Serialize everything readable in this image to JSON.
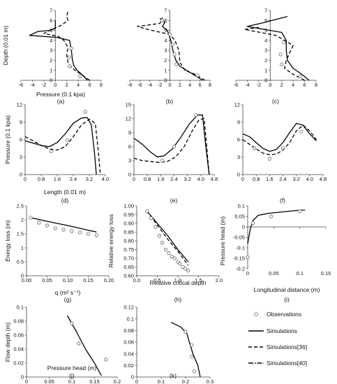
{
  "legend": [
    {
      "name": "Observations",
      "style": "circle"
    },
    {
      "name": "Simulations",
      "style": "solid"
    },
    {
      "name": "Simulations[36]",
      "style": "dashed"
    },
    {
      "name": "Simulations[40]",
      "style": "dashdot"
    }
  ],
  "chart_data": [
    {
      "id": "a",
      "type": "line",
      "panel_label": "(a)",
      "xlabel": "Pressure (0.1 kpa)",
      "ylabel": "Depth  (0.01 m)",
      "xlim": [
        -6,
        8
      ],
      "ylim": [
        0,
        7
      ],
      "xticks": [
        -6,
        -4,
        -2,
        0,
        2,
        4,
        6,
        8
      ],
      "yticks": [
        0,
        1,
        2,
        3,
        4,
        5,
        6,
        7
      ],
      "tick_labels_x": [
        "-6",
        "-4",
        "-2",
        "0",
        "2",
        "4",
        "6",
        "8"
      ],
      "tick_labels_y": [
        "0",
        "1",
        "2",
        "3",
        "4",
        "5",
        "6",
        "7"
      ],
      "series": [
        {
          "style": "solid",
          "x": [
            5.6,
            4.8,
            3.8,
            3.2,
            3.0,
            2.8,
            2.5,
            0.3,
            -4.5,
            -3.0,
            -1.0,
            0.0,
            0.0
          ],
          "y": [
            0.0,
            0.5,
            1.0,
            1.5,
            2.0,
            3.0,
            4.0,
            4.3,
            4.5,
            4.9,
            5.0,
            5.2,
            6.0
          ]
        },
        {
          "style": "dashed",
          "x": [
            6.0,
            5.0,
            4.0,
            3.0,
            2.2,
            2.0,
            2.2,
            1.5,
            0.5,
            -2.0,
            -1.0,
            1.0,
            2.2,
            2.0,
            2.2
          ],
          "y": [
            0.0,
            0.4,
            0.8,
            1.2,
            1.8,
            2.5,
            3.3,
            4.0,
            4.4,
            4.7,
            5.0,
            5.5,
            6.0,
            6.4,
            7.0
          ]
        },
        {
          "style": "circle",
          "x": [
            4.3,
            2.5,
            2.4,
            2.8
          ],
          "y": [
            0.4,
            1.4,
            2.3,
            3.2
          ]
        }
      ]
    },
    {
      "id": "b",
      "type": "line",
      "panel_label": "(b)",
      "xlabel": "",
      "ylabel": "",
      "xlim": [
        -8,
        8
      ],
      "ylim": [
        0,
        7
      ],
      "xticks": [
        -8,
        -6,
        -4,
        -2,
        0,
        2,
        4,
        6,
        8
      ],
      "yticks": [
        0,
        1,
        2,
        3,
        4,
        5,
        6,
        7
      ],
      "tick_labels_x": [
        "-8",
        "-6",
        "-4",
        "-2",
        "0",
        "2",
        "4",
        "6",
        "8"
      ],
      "tick_labels_y": [
        "0",
        "1",
        "2",
        "3",
        "4",
        "5",
        "6",
        "7"
      ],
      "series": [
        {
          "style": "solid",
          "x": [
            6.5,
            4.0,
            2.0,
            1.2,
            0.6,
            0.2,
            -0.5,
            -1.5,
            -1.0,
            -2.0
          ],
          "y": [
            0.0,
            0.8,
            1.4,
            2.0,
            3.0,
            4.0,
            5.0,
            5.4,
            5.8,
            6.2
          ]
        },
        {
          "style": "dashed",
          "x": [
            7.0,
            5.0,
            3.0,
            2.0,
            1.8,
            1.0,
            0.0,
            -4.5,
            -6.5,
            -2.0,
            -1.5
          ],
          "y": [
            0.0,
            0.6,
            1.0,
            1.8,
            3.0,
            4.0,
            4.6,
            5.1,
            5.4,
            5.7,
            6.3
          ]
        },
        {
          "style": "circle",
          "x": [
            5.5,
            1.3,
            0.9,
            0.6,
            0.0,
            -1.5
          ],
          "y": [
            0.5,
            1.6,
            2.6,
            3.6,
            4.6,
            6.0
          ]
        }
      ]
    },
    {
      "id": "c",
      "type": "line",
      "panel_label": "(c)",
      "xlabel": "",
      "ylabel": "",
      "xlim": [
        -6,
        8
      ],
      "ylim": [
        0,
        7
      ],
      "xticks": [
        -6,
        -4,
        -2,
        0,
        2,
        4,
        6,
        8
      ],
      "yticks": [
        0,
        1,
        2,
        3,
        4,
        5,
        6,
        7
      ],
      "tick_labels_x": [
        "-6",
        "-4",
        "-2",
        "0",
        "2",
        "4",
        "6",
        "8"
      ],
      "tick_labels_y": [
        "0",
        "1",
        "2",
        "3",
        "4",
        "5",
        "6",
        "7"
      ],
      "series": [
        {
          "style": "solid",
          "x": [
            6.8,
            5.5,
            4.0,
            3.0,
            2.8,
            2.8,
            2.0,
            -4.0,
            -1.0,
            3.0
          ],
          "y": [
            0.0,
            0.6,
            1.2,
            2.0,
            3.0,
            4.0,
            4.8,
            5.4,
            5.8,
            6.4
          ]
        },
        {
          "style": "dashed",
          "x": [
            6.0,
            4.0,
            2.5,
            2.8,
            4.0,
            1.0,
            -4.5,
            -2.0
          ],
          "y": [
            0.0,
            0.6,
            1.2,
            2.0,
            3.5,
            4.5,
            5.1,
            5.3
          ]
        },
        {
          "style": "circle",
          "x": [
            5.2,
            2.0,
            1.8,
            2.4
          ],
          "y": [
            0.4,
            1.6,
            2.6,
            3.8
          ]
        }
      ]
    },
    {
      "id": "d",
      "type": "line",
      "panel_label": "(d)",
      "xlabel": "Length (0.01 m)",
      "ylabel": "Pressure  (0.1 kpa)",
      "xlim": [
        0,
        4
      ],
      "ylim": [
        0,
        12
      ],
      "xticks": [
        0,
        0.8,
        1.6,
        2.4,
        3.2,
        4.0
      ],
      "yticks": [
        0,
        3,
        6,
        9,
        12
      ],
      "tick_labels_x": [
        "0",
        "0.8",
        "1.6",
        "2.4",
        "3.2",
        "4.0"
      ],
      "tick_labels_y": [
        "0",
        "3",
        "6",
        "9",
        "12"
      ],
      "series": [
        {
          "style": "solid",
          "x": [
            0.0,
            0.4,
            0.8,
            1.2,
            1.6,
            2.0,
            2.4,
            2.8,
            3.1,
            3.3,
            3.45,
            3.55
          ],
          "y": [
            5.8,
            5.4,
            5.0,
            4.8,
            5.5,
            7.0,
            8.8,
            9.7,
            9.8,
            8.5,
            4.0,
            0.0
          ]
        },
        {
          "style": "dashed",
          "x": [
            0.0,
            0.4,
            0.8,
            1.2,
            1.6,
            2.0,
            2.4,
            2.8,
            3.2,
            3.5,
            3.65,
            3.75
          ],
          "y": [
            6.5,
            5.8,
            5.0,
            4.4,
            4.2,
            4.8,
            6.5,
            8.5,
            9.5,
            8.8,
            4.0,
            0.0
          ]
        },
        {
          "style": "circle",
          "x": [
            1.3,
            2.1,
            3.0
          ],
          "y": [
            4.0,
            5.9,
            10.8
          ]
        }
      ]
    },
    {
      "id": "e",
      "type": "line",
      "panel_label": "(e)",
      "xlabel": "",
      "ylabel": "",
      "xlim": [
        0,
        4.8
      ],
      "ylim": [
        0,
        15
      ],
      "xticks": [
        0,
        0.8,
        1.6,
        2.4,
        3.2,
        4.0,
        4.8
      ],
      "yticks": [
        0,
        3,
        6,
        9,
        12,
        15
      ],
      "tick_labels_x": [
        "0",
        "0.8",
        "1.6",
        "2.4",
        "3.2",
        "4.0",
        "4.8"
      ],
      "tick_labels_y": [
        "0",
        "3",
        "6",
        "9",
        "12",
        "15"
      ],
      "series": [
        {
          "style": "solid",
          "x": [
            0.0,
            0.5,
            1.0,
            1.4,
            1.8,
            2.3,
            2.8,
            3.3,
            3.8,
            4.1,
            4.3,
            4.5
          ],
          "y": [
            7.8,
            6.5,
            4.8,
            3.8,
            4.0,
            5.5,
            8.0,
            10.8,
            12.8,
            12.8,
            6.0,
            0.0
          ]
        },
        {
          "style": "dashed",
          "x": [
            0.0,
            0.5,
            1.0,
            1.5,
            2.0,
            2.5,
            3.0,
            3.5,
            3.9,
            4.2,
            4.35,
            4.5
          ],
          "y": [
            3.5,
            3.0,
            2.8,
            2.6,
            2.8,
            3.8,
            6.0,
            9.5,
            11.8,
            12.0,
            6.0,
            0.0
          ]
        },
        {
          "style": "circle",
          "x": [
            1.7,
            2.4,
            3.7
          ],
          "y": [
            3.0,
            6.0,
            12.8
          ]
        }
      ]
    },
    {
      "id": "f",
      "type": "line",
      "panel_label": "(f)",
      "xlabel": "",
      "ylabel": "",
      "xlim": [
        0,
        4.8
      ],
      "ylim": [
        0,
        12
      ],
      "xticks": [
        0,
        0.8,
        1.6,
        2.4,
        3.2,
        4.0,
        4.8
      ],
      "yticks": [
        0,
        3,
        6,
        9,
        12
      ],
      "tick_labels_x": [
        "0",
        "0.8",
        "1.6",
        "2.4",
        "3.2",
        "4.0",
        "4.8"
      ],
      "tick_labels_y": [
        "0",
        "3",
        "6",
        "9",
        "12"
      ],
      "series": [
        {
          "style": "solid",
          "x": [
            0.0,
            0.4,
            0.8,
            1.2,
            1.6,
            2.0,
            2.4,
            2.8,
            3.2,
            3.6,
            4.0,
            4.4
          ],
          "y": [
            7.0,
            6.5,
            5.5,
            4.5,
            4.0,
            4.3,
            5.5,
            7.2,
            8.8,
            8.5,
            7.0,
            5.8
          ]
        },
        {
          "style": "dashed",
          "x": [
            0.0,
            0.4,
            0.8,
            1.2,
            1.6,
            2.0,
            2.4,
            2.8,
            3.2,
            3.6,
            4.0,
            4.4
          ],
          "y": [
            6.0,
            5.2,
            4.4,
            3.7,
            3.4,
            3.5,
            4.2,
            5.5,
            7.5,
            8.5,
            7.5,
            6.0
          ]
        },
        {
          "style": "circle",
          "x": [
            0.7,
            1.6,
            2.4,
            3.5
          ],
          "y": [
            4.5,
            2.7,
            4.6,
            7.4
          ]
        }
      ]
    },
    {
      "id": "g",
      "type": "line",
      "panel_label": "(g)",
      "xlabel": "q (m² s⁻¹)",
      "ylabel": "Energy loss (m)",
      "xlim": [
        0,
        0.2
      ],
      "ylim": [
        0,
        2.5
      ],
      "xticks": [
        0,
        0.05,
        0.1,
        0.15,
        0.2
      ],
      "yticks": [
        0,
        0.5,
        1,
        1.5,
        2,
        2.5
      ],
      "tick_labels_x": [
        "0.00",
        "0.05",
        "0.10",
        "0.15",
        "0.20"
      ],
      "tick_labels_y": [
        "0",
        "0.5",
        "1",
        "1.5",
        "2",
        "2.5"
      ],
      "series": [
        {
          "style": "solid",
          "x": [
            0.01,
            0.05,
            0.1,
            0.15,
            0.17
          ],
          "y": [
            2.08,
            1.95,
            1.8,
            1.63,
            1.57
          ]
        },
        {
          "style": "circle",
          "x": [
            0.01,
            0.03,
            0.05,
            0.07,
            0.09,
            0.11,
            0.13,
            0.15,
            0.17
          ],
          "y": [
            2.08,
            1.9,
            1.8,
            1.7,
            1.65,
            1.6,
            1.55,
            1.5,
            1.45
          ]
        }
      ]
    },
    {
      "id": "h",
      "type": "line",
      "panel_label": "(h)",
      "xlabel": "Relative critical depth",
      "ylabel": "Relative energy loss",
      "xlim": [
        0,
        2
      ],
      "ylim": [
        0.6,
        1.0
      ],
      "xticks": [
        0,
        0.5,
        1,
        1.5,
        2
      ],
      "yticks": [
        0.6,
        0.65,
        0.7,
        0.75,
        0.8,
        0.85,
        0.9,
        0.95,
        1.0
      ],
      "tick_labels_x": [
        "0.0",
        "0.5",
        "1.0",
        "1.5",
        "2.0"
      ],
      "tick_labels_y": [
        "0.60",
        "0.65",
        "0.70",
        "0.75",
        "0.80",
        "0.85",
        "0.90",
        "0.95",
        "1.00"
      ],
      "series": [
        {
          "style": "solid",
          "x": [
            0.25,
            0.5,
            0.75,
            1.0,
            1.25
          ],
          "y": [
            0.97,
            0.9,
            0.83,
            0.75,
            0.68
          ]
        },
        {
          "style": "dashed",
          "x": [
            0.25,
            0.5,
            0.75,
            1.0,
            1.25
          ],
          "y": [
            0.97,
            0.89,
            0.81,
            0.74,
            0.66
          ]
        },
        {
          "style": "circle",
          "x": [
            0.25,
            0.35,
            0.45,
            0.55,
            0.62,
            0.7,
            0.78,
            0.85,
            0.92,
            1.0,
            1.05,
            1.12,
            1.18,
            1.25
          ],
          "y": [
            0.97,
            0.93,
            0.88,
            0.83,
            0.79,
            0.75,
            0.73,
            0.71,
            0.7,
            0.68,
            0.67,
            0.65,
            0.64,
            0.63
          ]
        }
      ]
    },
    {
      "id": "i",
      "type": "line",
      "panel_label": "(i)",
      "xlabel": "Longitudinal distance (m)",
      "ylabel": "Pressure head (m)",
      "xlim": [
        0,
        0.15
      ],
      "ylim": [
        -0.2,
        0.1
      ],
      "xticks": [
        0,
        0.05,
        0.1,
        0.15
      ],
      "yticks": [
        -0.2,
        -0.15,
        -0.1,
        -0.05,
        0,
        0.05,
        0.1
      ],
      "tick_labels_x": [
        "0",
        "0.05",
        "0.1",
        "0.15"
      ],
      "tick_labels_y": [
        "-0.2",
        "-0.15",
        "-0.1",
        "-0.05",
        "0",
        "0.05",
        "0.1"
      ],
      "series": [
        {
          "style": "solid",
          "x": [
            0.0,
            0.005,
            0.01,
            0.02,
            0.04,
            0.06,
            0.08,
            0.1,
            0.11
          ],
          "y": [
            -0.08,
            -0.01,
            0.03,
            0.055,
            0.065,
            0.07,
            0.075,
            0.08,
            0.08
          ]
        },
        {
          "style": "circle",
          "x": [
            0.0,
            0.01,
            0.045,
            0.1
          ],
          "y": [
            -0.145,
            0.018,
            0.05,
            0.075
          ]
        }
      ]
    },
    {
      "id": "j",
      "type": "line",
      "panel_label": "(j)",
      "xlabel": "Pressure head (m)",
      "ylabel": "Flow depth (m)",
      "xlim": [
        0,
        0.2
      ],
      "ylim": [
        0,
        0.1
      ],
      "xticks": [
        0,
        0.05,
        0.1,
        0.15,
        0.2
      ],
      "yticks": [
        0,
        0.02,
        0.04,
        0.06,
        0.08,
        0.1
      ],
      "tick_labels_x": [
        "0",
        "0.05",
        "0.1",
        "0.15",
        "0.2"
      ],
      "tick_labels_y": [
        "0",
        "0.02",
        "0.04",
        "0.06",
        "0.08",
        "0.1"
      ],
      "series": [
        {
          "style": "solid",
          "x": [
            0.09,
            0.11,
            0.13,
            0.15,
            0.165
          ],
          "y": [
            0.088,
            0.065,
            0.04,
            0.02,
            0.002
          ]
        },
        {
          "style": "circle",
          "x": [
            0.1,
            0.115,
            0.175
          ],
          "y": [
            0.077,
            0.048,
            0.025
          ]
        }
      ]
    },
    {
      "id": "k",
      "type": "line",
      "panel_label": "(k)",
      "xlabel": "",
      "ylabel": "",
      "xlim": [
        0,
        0.3
      ],
      "ylim": [
        0,
        0.12
      ],
      "xticks": [
        0,
        0.1,
        0.2,
        0.3
      ],
      "yticks": [
        0,
        0.02,
        0.04,
        0.06,
        0.08,
        0.1,
        0.12
      ],
      "tick_labels_x": [
        "0",
        "0.1",
        "0.2",
        "0.3"
      ],
      "tick_labels_y": [
        "0",
        "0.02",
        "0.04",
        "0.06",
        "0.08",
        "0.1",
        "0.12"
      ],
      "series": [
        {
          "style": "solid",
          "x": [
            0.14,
            0.18,
            0.205,
            0.215,
            0.23,
            0.25,
            0.26
          ],
          "y": [
            0.094,
            0.086,
            0.075,
            0.06,
            0.04,
            0.02,
            0.0
          ]
        },
        {
          "style": "circle",
          "x": [
            0.2,
            0.225,
            0.225,
            0.235
          ],
          "y": [
            0.078,
            0.055,
            0.035,
            0.01
          ]
        }
      ]
    }
  ]
}
